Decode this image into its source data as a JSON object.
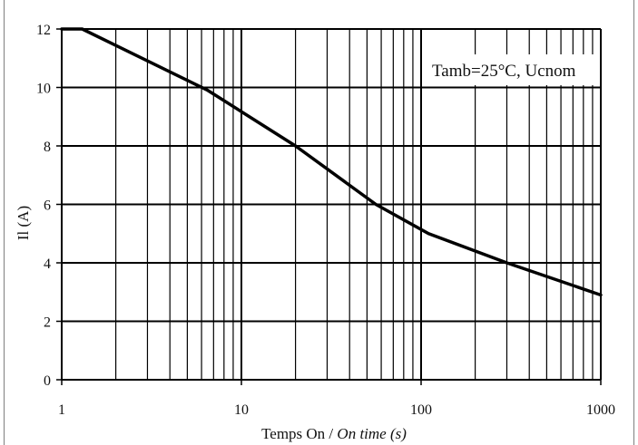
{
  "chart_data": {
    "type": "line",
    "title": "",
    "xlabel_main": "Temps On / ",
    "xlabel_italic": "On time (s)",
    "ylabel": "Il (A)",
    "annotation": "Tamb=25°C, Ucnom",
    "x_scale": "log",
    "xlim": [
      1,
      1000
    ],
    "ylim": [
      0,
      12
    ],
    "x_ticks": [
      {
        "value": 1,
        "label": "1"
      },
      {
        "value": 10,
        "label": "10"
      },
      {
        "value": 100,
        "label": "100"
      },
      {
        "value": 1000,
        "label": "1000"
      }
    ],
    "y_ticks": [
      {
        "value": 0,
        "label": "0"
      },
      {
        "value": 2,
        "label": "2"
      },
      {
        "value": 4,
        "label": "4"
      },
      {
        "value": 6,
        "label": "6"
      },
      {
        "value": 8,
        "label": "8"
      },
      {
        "value": 10,
        "label": "10"
      },
      {
        "value": 12,
        "label": "12"
      }
    ],
    "grid": true,
    "series": [
      {
        "name": "",
        "color": "#000000",
        "points": [
          {
            "x": 1,
            "y": 12
          },
          {
            "x": 1.3,
            "y": 12
          },
          {
            "x": 6.5,
            "y": 9.9
          },
          {
            "x": 20,
            "y": 8
          },
          {
            "x": 56,
            "y": 6
          },
          {
            "x": 110,
            "y": 5
          },
          {
            "x": 300,
            "y": 4
          },
          {
            "x": 1000,
            "y": 2.9
          }
        ]
      }
    ]
  }
}
